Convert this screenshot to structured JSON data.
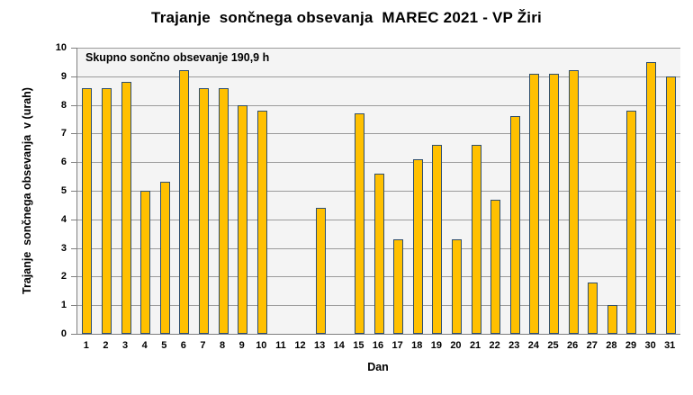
{
  "title": "Trajanje  sončnega obsevanja  MAREC 2021 - VP Žiri",
  "annotation": "Skupno sončno obsevanje 190,9 h",
  "chart_data": {
    "type": "bar",
    "title": "Trajanje  sončnega obsevanja  MAREC 2021 - VP Žiri",
    "annotation": "Skupno sončno obsevanje 190,9 h",
    "xlabel": "Dan",
    "ylabel": "Trajanje  sončnega obsevanja  v (urah)",
    "categories": [
      "1",
      "2",
      "3",
      "4",
      "5",
      "6",
      "7",
      "8",
      "9",
      "10",
      "11",
      "12",
      "13",
      "14",
      "15",
      "16",
      "17",
      "18",
      "19",
      "20",
      "21",
      "22",
      "23",
      "24",
      "25",
      "26",
      "27",
      "28",
      "29",
      "30",
      "31"
    ],
    "values": [
      8.6,
      8.6,
      8.8,
      5.0,
      5.3,
      9.2,
      8.6,
      8.6,
      8.0,
      7.8,
      0,
      0,
      4.4,
      0,
      7.7,
      5.6,
      3.3,
      6.1,
      6.6,
      3.3,
      6.6,
      4.7,
      7.6,
      9.1,
      9.1,
      9.2,
      1.8,
      1.0,
      7.8,
      9.5,
      9.0
    ],
    "total_hours": "190,9",
    "ylim": [
      0,
      10
    ],
    "ytick_step": 1,
    "grid": "horizontal",
    "legend": "none"
  },
  "colors": {
    "bar_fill": "#FFC000",
    "bar_border": "#2E4E6E",
    "plot_bg": "#F4F4F4",
    "gridline": "#9B9B9B",
    "axis": "#7F7F7F",
    "text": "#000000",
    "page_bg": "#FFFFFF"
  }
}
